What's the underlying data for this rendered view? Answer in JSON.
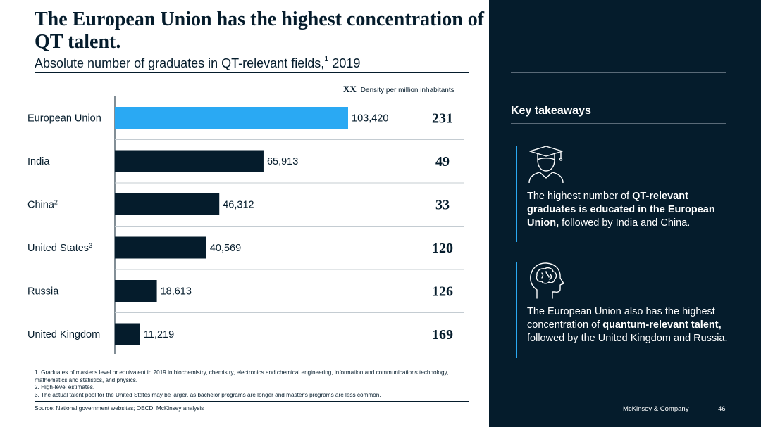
{
  "header": {
    "title": "The European Union has the highest concentration of QT talent.",
    "subtitle": "Absolute number of graduates in QT-relevant fields,",
    "subtitle_sup": "1",
    "subtitle_year": " 2019"
  },
  "legend": {
    "marker": "XX",
    "label": "Density per million inhabitants"
  },
  "chart_data": {
    "type": "bar",
    "orientation": "horizontal",
    "categories": [
      "European Union",
      "India",
      "China",
      "United States",
      "Russia",
      "United Kingdom"
    ],
    "category_sups": [
      "",
      "",
      "2",
      "3",
      "",
      ""
    ],
    "values": [
      103420,
      65913,
      46312,
      40569,
      18613,
      11219
    ],
    "value_labels": [
      "103,420",
      "65,913",
      "46,312",
      "40,569",
      "18,613",
      "11,219"
    ],
    "density": [
      231,
      49,
      33,
      120,
      126,
      169
    ],
    "highlight_index": 0,
    "highlight_color": "#2aa9f3",
    "bar_color": "#051c2c",
    "xlim": [
      0,
      103420
    ],
    "title": "Absolute number of graduates in QT-relevant fields, 2019",
    "xlabel": "",
    "ylabel": ""
  },
  "takeaways": {
    "heading": "Key takeaways",
    "items": [
      {
        "icon": "graduate-icon",
        "parts": [
          [
            "The highest number of ",
            false
          ],
          [
            "QT-relevant graduates is educated in the European Union,",
            true
          ],
          [
            " followed by India and China.",
            false
          ]
        ]
      },
      {
        "icon": "brain-head-icon",
        "parts": [
          [
            "The European Union also has the highest concentration of ",
            false
          ],
          [
            "quantum-relevant talent,",
            true
          ],
          [
            " followed by the United Kingdom and Russia.",
            false
          ]
        ]
      }
    ]
  },
  "footnotes": [
    "1. Graduates of master's level or equivalent in 2019 in biochemistry, chemistry, electronics and chemical engineering, information and communications technology, mathematics and statistics, and physics.",
    "2. High-level estimates.",
    "3. The actual talent pool for the United States may be larger, as bachelor programs are longer and master's programs are less common."
  ],
  "source": "Source: National government websites; OECD; McKinsey analysis",
  "brand": "McKinsey & Company",
  "page_number": "46"
}
